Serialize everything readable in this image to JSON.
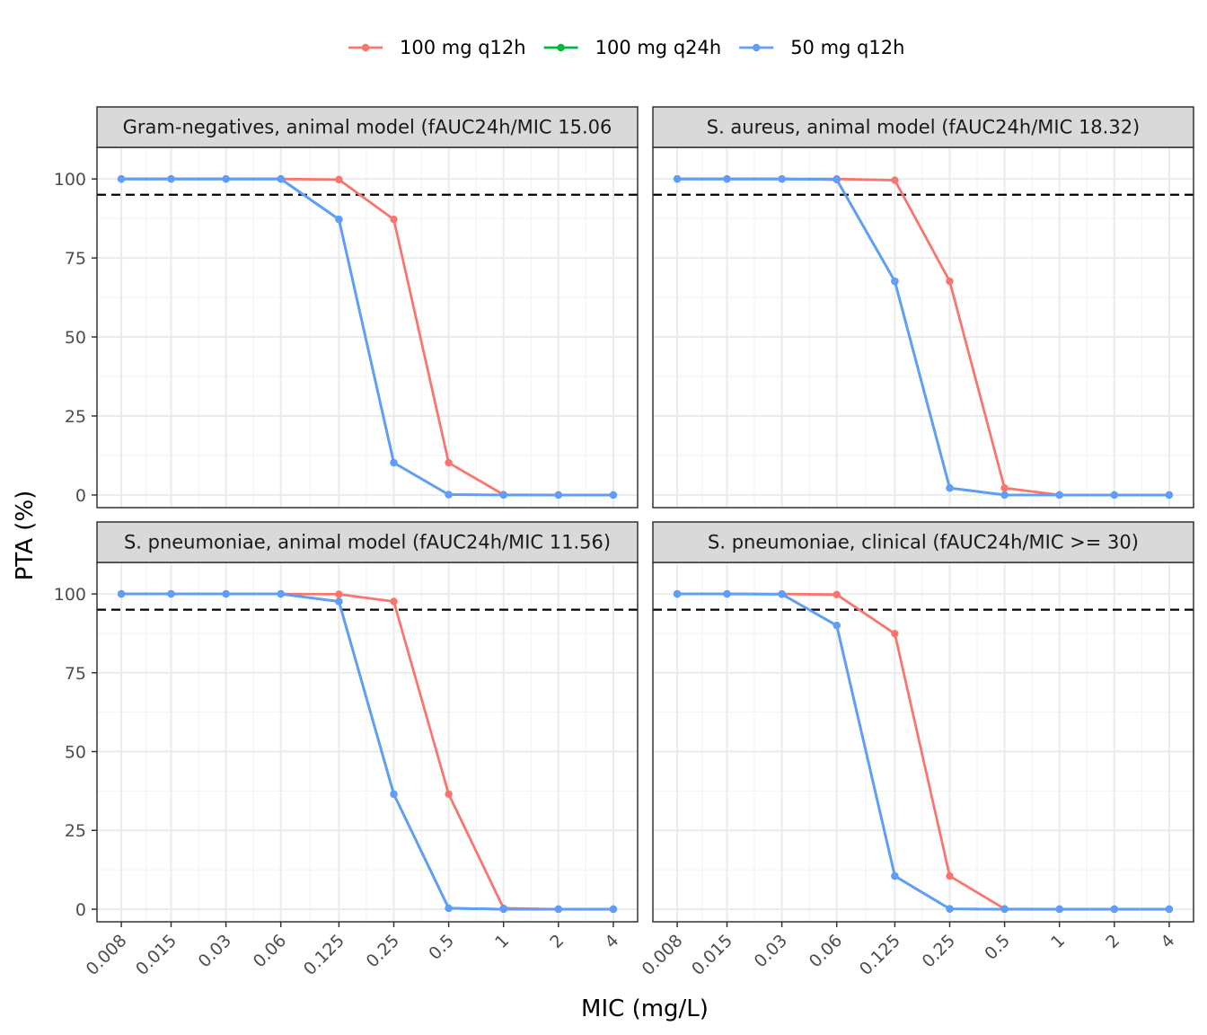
{
  "chart_data": {
    "type": "line",
    "xlabel": "MIC (mg/L)",
    "ylabel": "PTA (%)",
    "x_categories": [
      "0.008",
      "0.015",
      "0.03",
      "0.06",
      "0.125",
      "0.25",
      "0.5",
      "1",
      "2",
      "4"
    ],
    "x_scale": "log2",
    "ylim": [
      -4,
      110
    ],
    "y_ticks": [
      "0",
      "25",
      "50",
      "75",
      "100"
    ],
    "grid": true,
    "reference_line": {
      "y": 95,
      "style": "dashed"
    },
    "legend": {
      "position": "top",
      "entries": [
        {
          "name": "100 mg q12h",
          "color": "#F8766D"
        },
        {
          "name": "100 mg q24h",
          "color": "#00BA38"
        },
        {
          "name": "50 mg q12h",
          "color": "#619CFF"
        }
      ]
    },
    "panels": [
      {
        "title": "Gram-negatives, animal model (fAUC24h/MIC 15.06",
        "series": [
          {
            "name": "100 mg q12h",
            "values": [
              100,
              100,
              100,
              100,
              99.8,
              87.2,
              10.2,
              0.1,
              0,
              0
            ]
          },
          {
            "name": "100 mg q24h",
            "values": [
              100,
              100,
              100,
              100,
              87.2,
              10.2,
              0.1,
              0,
              0,
              0
            ]
          },
          {
            "name": "50 mg q12h",
            "values": [
              100,
              100,
              100,
              100,
              87.2,
              10.2,
              0.1,
              0,
              0,
              0
            ]
          }
        ]
      },
      {
        "title": "S. aureus, animal model (fAUC24h/MIC 18.32)",
        "series": [
          {
            "name": "100 mg q12h",
            "values": [
              100,
              100,
              100,
              100,
              99.6,
              67.6,
              2.2,
              0,
              0,
              0
            ]
          },
          {
            "name": "100 mg q24h",
            "values": [
              100,
              100,
              100,
              99.8,
              67.6,
              2.2,
              0,
              0,
              0,
              0
            ]
          },
          {
            "name": "50 mg q12h",
            "values": [
              100,
              100,
              100,
              99.8,
              67.6,
              2.2,
              0,
              0,
              0,
              0
            ]
          }
        ]
      },
      {
        "title": "S. pneumoniae, animal model (fAUC24h/MIC 11.56)",
        "series": [
          {
            "name": "100 mg q12h",
            "values": [
              100,
              100,
              100,
              100,
              99.9,
              97.6,
              36.5,
              0.3,
              0,
              0
            ]
          },
          {
            "name": "100 mg q24h",
            "values": [
              100,
              100,
              100,
              100,
              97.6,
              36.5,
              0.3,
              0,
              0,
              0
            ]
          },
          {
            "name": "50 mg q12h",
            "values": [
              100,
              100,
              100,
              100,
              97.6,
              36.5,
              0.3,
              0,
              0,
              0
            ]
          }
        ]
      },
      {
        "title": "S. pneumoniae, clinical (fAUC24h/MIC >= 30)",
        "series": [
          {
            "name": "100 mg q12h",
            "values": [
              100,
              100,
              100,
              99.8,
              87.4,
              10.5,
              0.1,
              0,
              0,
              0
            ]
          },
          {
            "name": "100 mg q24h",
            "values": [
              100,
              100,
              99.9,
              90,
              10.5,
              0.1,
              0,
              0,
              0,
              0
            ]
          },
          {
            "name": "50 mg q12h",
            "values": [
              100,
              100,
              99.9,
              90,
              10.5,
              0.1,
              0,
              0,
              0,
              0
            ]
          }
        ]
      }
    ]
  }
}
